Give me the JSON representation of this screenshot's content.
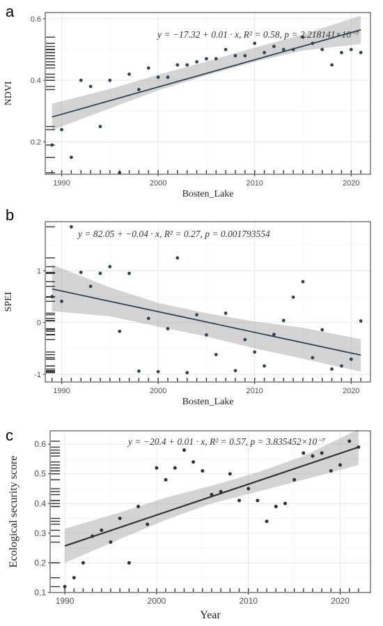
{
  "chart_data": [
    {
      "panel": "a",
      "type": "scatter",
      "xlabel": "Bosten_Lake",
      "ylabel": "NDVI",
      "annotation": "y = −17.32 + 0.01 · x,  R² = 0.58,  p = 2.218141×10⁻⁷",
      "xlim": [
        1988.3,
        2022
      ],
      "ylim": [
        0.095,
        0.62
      ],
      "xticks": [
        1990,
        2000,
        2010,
        2020
      ],
      "yticks": [
        0.2,
        0.4,
        0.6
      ],
      "grid": true,
      "x": [
        1989,
        1990,
        1991,
        1992,
        1993,
        1994,
        1995,
        1996,
        1997,
        1998,
        1999,
        2000,
        2001,
        2002,
        2003,
        2004,
        2005,
        2006,
        2007,
        2008,
        2009,
        2010,
        2011,
        2012,
        2013,
        2014,
        2015,
        2016,
        2017,
        2018,
        2019,
        2020,
        2021
      ],
      "y": [
        0.19,
        0.24,
        0.15,
        0.4,
        0.38,
        0.25,
        0.4,
        0.1,
        0.42,
        0.37,
        0.44,
        0.41,
        0.41,
        0.45,
        0.45,
        0.46,
        0.47,
        0.47,
        0.5,
        0.48,
        0.48,
        0.52,
        0.49,
        0.51,
        0.5,
        0.5,
        0.54,
        0.52,
        0.5,
        0.45,
        0.49,
        0.5,
        0.49
      ],
      "fit": {
        "x": [
          1989,
          2021
        ],
        "y": [
          0.281,
          0.564
        ]
      },
      "ci": {
        "x": [
          1989,
          1995,
          2000,
          2005,
          2010,
          2015,
          2021
        ],
        "lower": [
          0.238,
          0.309,
          0.367,
          0.416,
          0.46,
          0.497,
          0.518
        ],
        "upper": [
          0.324,
          0.372,
          0.418,
          0.461,
          0.506,
          0.549,
          0.61
        ]
      }
    },
    {
      "panel": "b",
      "type": "scatter",
      "xlabel": "Bosten_Lake",
      "ylabel": "SPEI",
      "annotation": "y = 82.05 + −0.04 · x,  R² = 0.27,  p = 0.001793554",
      "xlim": [
        1988.3,
        2022
      ],
      "ylim": [
        -1.15,
        1.95
      ],
      "xticks": [
        1990,
        2000,
        2010,
        2020
      ],
      "yticks": [
        -1,
        0,
        1
      ],
      "grid": true,
      "x": [
        1989,
        1990,
        1991,
        1992,
        1993,
        1994,
        1995,
        1996,
        1997,
        1998,
        1999,
        2000,
        2001,
        2002,
        2003,
        2004,
        2005,
        2006,
        2007,
        2008,
        2009,
        2010,
        2011,
        2012,
        2013,
        2014,
        2015,
        2016,
        2017,
        2018,
        2019,
        2020,
        2021
      ],
      "y": [
        0.5,
        0.41,
        1.85,
        0.97,
        0.7,
        0.95,
        1.08,
        -0.17,
        0.95,
        -0.94,
        0.08,
        -0.95,
        -0.12,
        1.25,
        -0.97,
        0.15,
        -0.24,
        -0.62,
        0.18,
        -0.93,
        -0.33,
        -0.57,
        -0.84,
        -0.23,
        0.04,
        0.49,
        0.79,
        -0.68,
        -0.14,
        -0.9,
        -0.84,
        -0.71,
        0.03
      ],
      "fit": {
        "x": [
          1989,
          2021
        ],
        "y": [
          0.65,
          -0.63
        ]
      },
      "ci": {
        "x": [
          1989,
          1995,
          2000,
          2005,
          2010,
          2015,
          2021
        ],
        "lower": [
          0.22,
          0.12,
          -0.08,
          -0.27,
          -0.5,
          -0.7,
          -0.95
        ],
        "upper": [
          1.12,
          0.68,
          0.38,
          0.18,
          0.02,
          -0.1,
          -0.32
        ]
      }
    },
    {
      "panel": "c",
      "type": "scatter",
      "xlabel": "Year",
      "ylabel": "Ecological security score",
      "annotation": "y = −20.4 + 0.01 · x,  R² = 0.57,  p = 3.835452×10⁻⁷",
      "xlim": [
        1988.4,
        2023.3
      ],
      "ylim": [
        0.1,
        0.645
      ],
      "xticks": [
        1990,
        2000,
        2010,
        2020
      ],
      "yticks": [
        0.1,
        0.2,
        0.3,
        0.4,
        0.5,
        0.6
      ],
      "grid": true,
      "x": [
        1990,
        1991,
        1992,
        1993,
        1994,
        1995,
        1996,
        1997,
        1998,
        1999,
        2000,
        2001,
        2002,
        2003,
        2004,
        2005,
        2006,
        2007,
        2008,
        2009,
        2010,
        2011,
        2012,
        2013,
        2014,
        2015,
        2016,
        2017,
        2018,
        2019,
        2020,
        2021,
        2022
      ],
      "y": [
        0.12,
        0.15,
        0.2,
        0.29,
        0.31,
        0.27,
        0.35,
        0.2,
        0.39,
        0.33,
        0.52,
        0.48,
        0.52,
        0.58,
        0.54,
        0.51,
        0.43,
        0.44,
        0.5,
        0.41,
        0.45,
        0.41,
        0.34,
        0.39,
        0.4,
        0.48,
        0.57,
        0.56,
        0.57,
        0.51,
        0.53,
        0.61,
        0.59
      ],
      "fit": {
        "x": [
          1990,
          2022
        ],
        "y": [
          0.257,
          0.59
        ]
      },
      "ci": {
        "x": [
          1990,
          1996,
          2001,
          2006,
          2011,
          2016,
          2022
        ],
        "lower": [
          0.2,
          0.28,
          0.345,
          0.4,
          0.44,
          0.48,
          0.53
        ],
        "upper": [
          0.315,
          0.37,
          0.42,
          0.46,
          0.505,
          0.56,
          0.65
        ]
      }
    }
  ]
}
